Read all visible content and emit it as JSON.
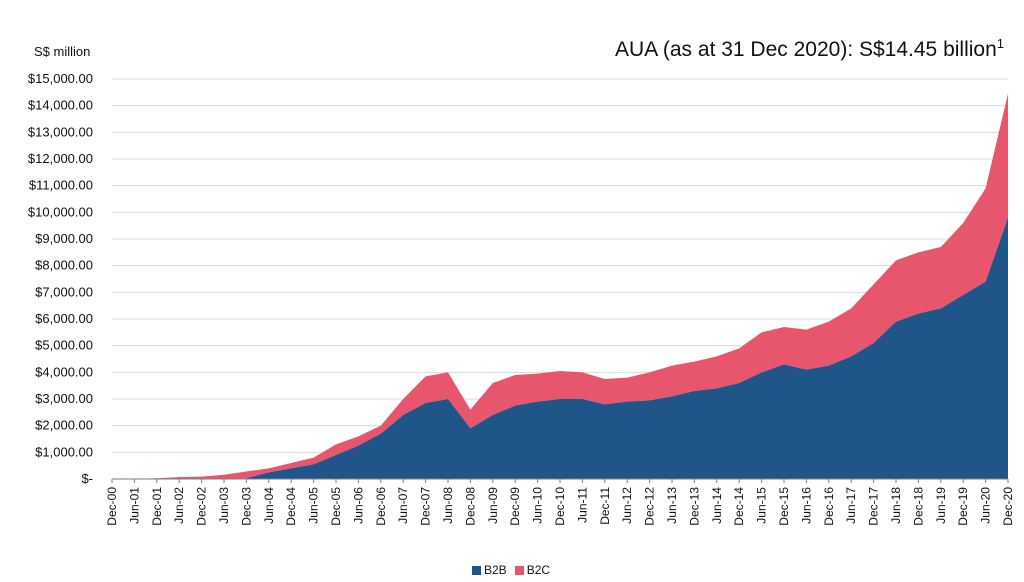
{
  "unit_label": "S$ million",
  "headline": {
    "text": "AUA (as at 31 Dec 2020): S$14.45 billion",
    "footnote": "1"
  },
  "colors": {
    "b2b": "#1f5588",
    "b2c": "#e8566d",
    "grid": "#d9d9d9",
    "axis": "#7f7f7f"
  },
  "chart_data": {
    "type": "area",
    "stacked": true,
    "ylim": [
      0,
      15000
    ],
    "y_ticks": [
      {
        "value": 0,
        "label": "$-"
      },
      {
        "value": 1000,
        "label": "$1,000.00"
      },
      {
        "value": 2000,
        "label": "$2,000.00"
      },
      {
        "value": 3000,
        "label": "$3,000.00"
      },
      {
        "value": 4000,
        "label": "$4,000.00"
      },
      {
        "value": 5000,
        "label": "$5,000.00"
      },
      {
        "value": 6000,
        "label": "$6,000.00"
      },
      {
        "value": 7000,
        "label": "$7,000.00"
      },
      {
        "value": 8000,
        "label": "$8,000.00"
      },
      {
        "value": 9000,
        "label": "$9,000.00"
      },
      {
        "value": 10000,
        "label": "$10,000.00"
      },
      {
        "value": 11000,
        "label": "$11,000.00"
      },
      {
        "value": 12000,
        "label": "$12,000.00"
      },
      {
        "value": 13000,
        "label": "$13,000.00"
      },
      {
        "value": 14000,
        "label": "$14,000.00"
      },
      {
        "value": 15000,
        "label": "$15,000.00"
      }
    ],
    "x": [
      "Dec-00",
      "Jun-01",
      "Dec-01",
      "Jun-02",
      "Dec-02",
      "Jun-03",
      "Dec-03",
      "Jun-04",
      "Dec-04",
      "Jun-05",
      "Dec-05",
      "Jun-06",
      "Dec-06",
      "Jun-07",
      "Dec-07",
      "Jun-08",
      "Dec-08",
      "Jun-09",
      "Dec-09",
      "Jun-10",
      "Dec-10",
      "Jun-11",
      "Dec-11",
      "Jun-12",
      "Dec-12",
      "Jun-13",
      "Dec-13",
      "Jun-14",
      "Dec-14",
      "Jun-15",
      "Dec-15",
      "Jun-16",
      "Dec-16",
      "Jun-17",
      "Dec-17",
      "Jun-18",
      "Dec-18",
      "Jun-19",
      "Dec-19",
      "Jun-20",
      "Dec-20"
    ],
    "series": [
      {
        "name": "B2B",
        "color": "#1f5588",
        "values": [
          0,
          0,
          0,
          0,
          0,
          10,
          30,
          250,
          400,
          550,
          900,
          1250,
          1700,
          2400,
          2850,
          3000,
          1900,
          2400,
          2750,
          2900,
          3000,
          3000,
          2800,
          2900,
          2950,
          3100,
          3300,
          3400,
          3600,
          4000,
          4300,
          4100,
          4250,
          4600,
          5100,
          5900,
          6200,
          6400,
          6900,
          7400,
          9800
        ]
      },
      {
        "name": "B2C",
        "color": "#e8566d",
        "values": [
          0,
          10,
          30,
          70,
          90,
          150,
          250,
          150,
          200,
          250,
          400,
          350,
          300,
          600,
          1000,
          1000,
          700,
          1200,
          1150,
          1050,
          1050,
          1000,
          950,
          900,
          1050,
          1150,
          1100,
          1200,
          1300,
          1500,
          1400,
          1500,
          1650,
          1800,
          2200,
          2300,
          2300,
          2300,
          2700,
          3500,
          4650
        ]
      }
    ],
    "legend_position": "bottom"
  }
}
